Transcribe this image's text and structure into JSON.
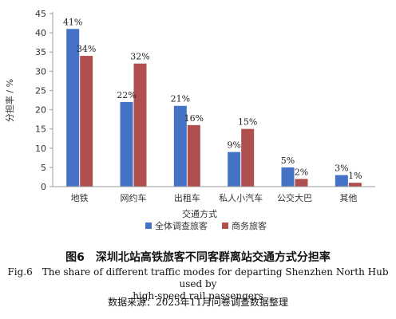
{
  "chart_data": {
    "type": "bar",
    "categories": [
      "地铁",
      "网约车",
      "出租车",
      "私人小汽车",
      "公交大巴",
      "其他"
    ],
    "series": [
      {
        "name": "全体调查旅客",
        "values": [
          41,
          22,
          21,
          9,
          5,
          3
        ],
        "labels": [
          "41%",
          "22%",
          "21%",
          "9%",
          "5%",
          "3%"
        ],
        "color": "#4472C4"
      },
      {
        "name": "商务旅客",
        "values": [
          34,
          32,
          16,
          15,
          2,
          1
        ],
        "labels": [
          "34%",
          "32%",
          "16%",
          "15%",
          "2%",
          "1%"
        ],
        "color": "#B0504E"
      }
    ],
    "xlabel": "交通方式",
    "ylabel": "分担率 / %",
    "ylim": [
      0,
      45
    ],
    "yticks": [
      0,
      5,
      10,
      15,
      20,
      25,
      30,
      35,
      40,
      45
    ],
    "grid": false,
    "legend_position": "bottom"
  },
  "figure": {
    "title": "图6　深圳北站高铁旅客不同客群离站交通方式分担率",
    "title_en_line1": "Fig.6　The share of different traffic modes for departing Shenzhen North Hub used by",
    "title_en_line2": "high-speed rail passengers",
    "source": "数据来源：2023年11月问卷调查数据整理"
  }
}
